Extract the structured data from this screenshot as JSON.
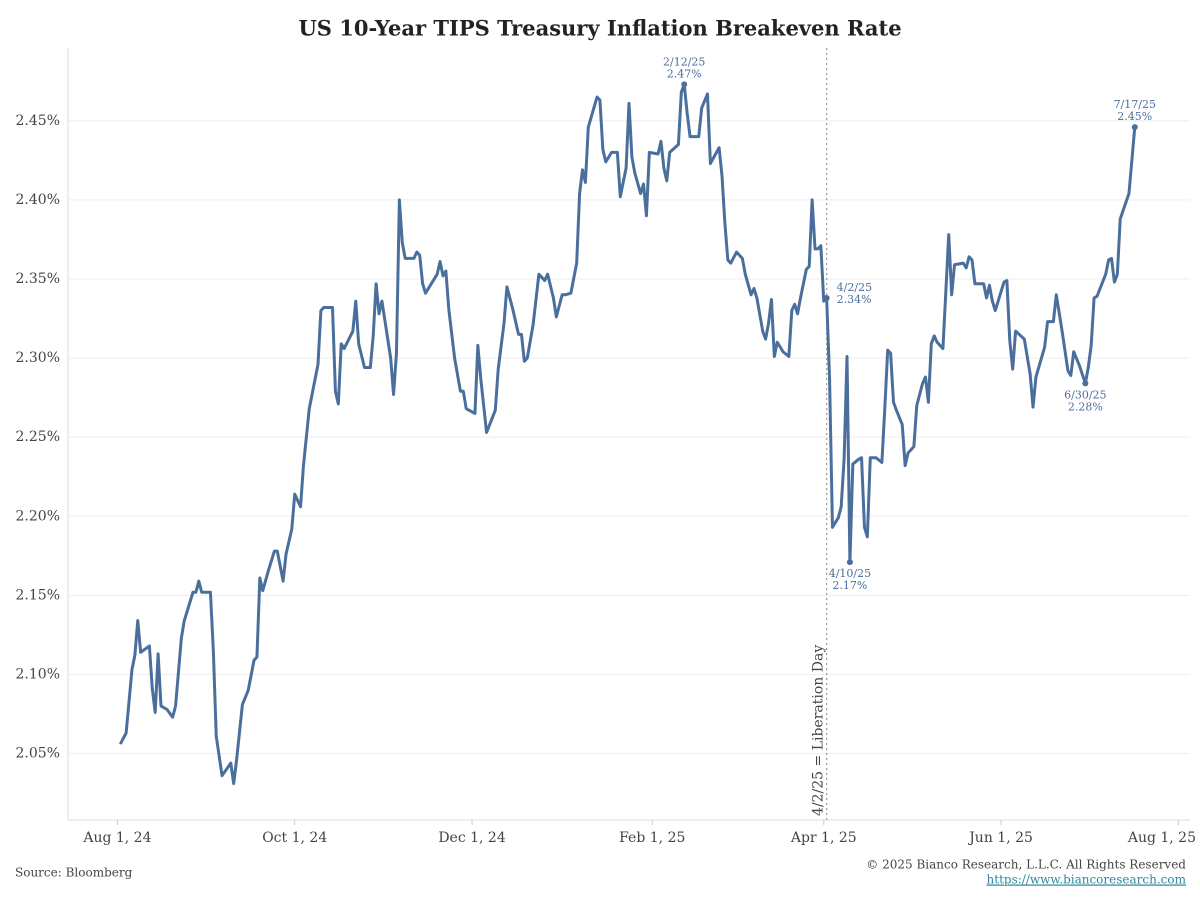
{
  "chart_data": {
    "type": "line",
    "title": "US 10-Year TIPS Treasury Inflation Breakeven Rate",
    "source": "Source: Bloomberg",
    "copyright": "© 2025 Bianco Research, L.L.C. All Rights Reserved",
    "url": "https://www.biancoresearch.com",
    "color": "#4a6f9c",
    "grid": true,
    "xlim": [
      "2024-07-15",
      "2025-08-05"
    ],
    "xticks": [
      {
        "value": "2024-08-01",
        "label": "Aug 1, 24"
      },
      {
        "value": "2024-10-01",
        "label": "Oct 1, 24"
      },
      {
        "value": "2024-12-01",
        "label": "Dec 1, 24"
      },
      {
        "value": "2025-02-01",
        "label": "Feb 1, 25"
      },
      {
        "value": "2025-04-01",
        "label": "Apr 1, 25"
      },
      {
        "value": "2025-06-01",
        "label": "Jun 1, 25"
      },
      {
        "value": "2025-08-01",
        "label": "Aug 1, 25"
      }
    ],
    "ylim": [
      2.008,
      2.496
    ],
    "yticks": [
      {
        "value": 2.05,
        "label": "2.05%"
      },
      {
        "value": 2.1,
        "label": "2.10%"
      },
      {
        "value": 2.15,
        "label": "2.15%"
      },
      {
        "value": 2.2,
        "label": "2.20%"
      },
      {
        "value": 2.25,
        "label": "2.25%"
      },
      {
        "value": 2.3,
        "label": "2.30%"
      },
      {
        "value": 2.35,
        "label": "2.35%"
      },
      {
        "value": 2.4,
        "label": "2.40%"
      },
      {
        "value": 2.45,
        "label": "2.45%"
      }
    ],
    "vline": {
      "x": "2025-04-02",
      "label": "4/2/25 = Liberation Day"
    },
    "annotations": [
      {
        "x": "2025-02-12",
        "label": "2/12/25",
        "value_label": "2.47%"
      },
      {
        "x": "2025-04-02",
        "label": "4/2/25",
        "value_label": "2.34%"
      },
      {
        "x": "2025-04-10",
        "label": "4/10/25",
        "value_label": "2.17%"
      },
      {
        "x": "2025-06-30",
        "label": "6/30/25",
        "value_label": "2.28%"
      },
      {
        "x": "2025-07-17",
        "label": "7/17/25",
        "value_label": "2.45%"
      }
    ],
    "x": [
      "2024-08-02",
      "2024-08-04",
      "2024-08-06",
      "2024-08-07",
      "2024-08-08",
      "2024-08-09",
      "2024-08-12",
      "2024-08-13",
      "2024-08-14",
      "2024-08-15",
      "2024-08-16",
      "2024-08-18",
      "2024-08-20",
      "2024-08-21",
      "2024-08-23",
      "2024-08-24",
      "2024-08-27",
      "2024-08-28",
      "2024-08-29",
      "2024-08-30",
      "2024-09-02",
      "2024-09-03",
      "2024-09-04",
      "2024-09-06",
      "2024-09-09",
      "2024-09-10",
      "2024-09-11",
      "2024-09-13",
      "2024-09-15",
      "2024-09-17",
      "2024-09-18",
      "2024-09-19",
      "2024-09-20",
      "2024-09-22",
      "2024-09-24",
      "2024-09-25",
      "2024-09-27",
      "2024-09-28",
      "2024-09-30",
      "2024-10-01",
      "2024-10-03",
      "2024-10-04",
      "2024-10-06",
      "2024-10-09",
      "2024-10-10",
      "2024-10-11",
      "2024-10-14",
      "2024-10-15",
      "2024-10-16",
      "2024-10-17",
      "2024-10-18",
      "2024-10-21",
      "2024-10-22",
      "2024-10-23",
      "2024-10-25",
      "2024-10-27",
      "2024-10-28",
      "2024-10-29",
      "2024-10-30",
      "2024-10-31",
      "2024-11-03",
      "2024-11-04",
      "2024-11-05",
      "2024-11-06",
      "2024-11-07",
      "2024-11-08",
      "2024-11-11",
      "2024-11-12",
      "2024-11-13",
      "2024-11-14",
      "2024-11-15",
      "2024-11-17",
      "2024-11-19",
      "2024-11-20",
      "2024-11-21",
      "2024-11-22",
      "2024-11-23",
      "2024-11-25",
      "2024-11-27",
      "2024-11-28",
      "2024-11-29",
      "2024-12-02",
      "2024-12-03",
      "2024-12-04",
      "2024-12-06",
      "2024-12-09",
      "2024-12-10",
      "2024-12-12",
      "2024-12-13",
      "2024-12-15",
      "2024-12-17",
      "2024-12-18",
      "2024-12-19",
      "2024-12-20",
      "2024-12-22",
      "2024-12-24",
      "2024-12-26",
      "2024-12-27",
      "2024-12-29",
      "2024-12-30",
      "2025-01-01",
      "2025-01-02",
      "2025-01-04",
      "2025-01-06",
      "2025-01-07",
      "2025-01-08",
      "2025-01-09",
      "2025-01-10",
      "2025-01-13",
      "2025-01-14",
      "2025-01-15",
      "2025-01-16",
      "2025-01-18",
      "2025-01-20",
      "2025-01-21",
      "2025-01-23",
      "2025-01-24",
      "2025-01-25",
      "2025-01-26",
      "2025-01-28",
      "2025-01-29",
      "2025-01-30",
      "2025-01-31",
      "2025-02-03",
      "2025-02-04",
      "2025-02-05",
      "2025-02-06",
      "2025-02-07",
      "2025-02-10",
      "2025-02-11",
      "2025-02-12",
      "2025-02-13",
      "2025-02-14",
      "2025-02-17",
      "2025-02-18",
      "2025-02-20",
      "2025-02-21",
      "2025-02-24",
      "2025-02-25",
      "2025-02-26",
      "2025-02-27",
      "2025-02-28",
      "2025-03-02",
      "2025-03-04",
      "2025-03-05",
      "2025-03-07",
      "2025-03-08",
      "2025-03-09",
      "2025-03-11",
      "2025-03-12",
      "2025-03-13",
      "2025-03-14",
      "2025-03-15",
      "2025-03-16",
      "2025-03-18",
      "2025-03-20",
      "2025-03-21",
      "2025-03-22",
      "2025-03-23",
      "2025-03-24",
      "2025-03-26",
      "2025-03-27",
      "2025-03-28",
      "2025-03-29",
      "2025-03-30",
      "2025-03-31",
      "2025-04-01",
      "2025-04-02",
      "2025-04-03",
      "2025-04-04",
      "2025-04-06",
      "2025-04-07",
      "2025-04-08",
      "2025-04-09",
      "2025-04-10",
      "2025-04-11",
      "2025-04-13",
      "2025-04-14",
      "2025-04-15",
      "2025-04-16",
      "2025-04-17",
      "2025-04-19",
      "2025-04-21",
      "2025-04-22",
      "2025-04-23",
      "2025-04-24",
      "2025-04-25",
      "2025-04-26",
      "2025-04-28",
      "2025-04-29",
      "2025-04-30",
      "2025-05-02",
      "2025-05-03",
      "2025-05-04",
      "2025-05-05",
      "2025-05-06",
      "2025-05-07",
      "2025-05-08",
      "2025-05-09",
      "2025-05-10",
      "2025-05-12",
      "2025-05-13",
      "2025-05-14",
      "2025-05-15",
      "2025-05-16",
      "2025-05-19",
      "2025-05-20",
      "2025-05-21",
      "2025-05-22",
      "2025-05-23",
      "2025-05-26",
      "2025-05-27",
      "2025-05-28",
      "2025-05-29",
      "2025-05-30",
      "2025-05-31",
      "2025-06-02",
      "2025-06-03",
      "2025-06-04",
      "2025-06-05",
      "2025-06-06",
      "2025-06-09",
      "2025-06-10",
      "2025-06-11",
      "2025-06-12",
      "2025-06-13",
      "2025-06-16",
      "2025-06-17",
      "2025-06-19",
      "2025-06-20",
      "2025-06-22",
      "2025-06-24",
      "2025-06-25",
      "2025-06-26",
      "2025-06-28",
      "2025-06-30",
      "2025-07-01",
      "2025-07-02",
      "2025-07-03",
      "2025-07-04",
      "2025-07-07",
      "2025-07-08",
      "2025-07-09",
      "2025-07-10",
      "2025-07-11",
      "2025-07-12",
      "2025-07-15",
      "2025-07-16",
      "2025-07-17"
    ],
    "values": [
      2.056,
      2.063,
      2.103,
      2.112,
      2.134,
      2.114,
      2.118,
      2.091,
      2.076,
      2.113,
      2.08,
      2.078,
      2.073,
      2.08,
      2.123,
      2.134,
      2.152,
      2.152,
      2.159,
      2.152,
      2.152,
      2.115,
      2.061,
      2.036,
      2.044,
      2.031,
      2.046,
      2.081,
      2.09,
      2.109,
      2.111,
      2.161,
      2.153,
      2.166,
      2.178,
      2.178,
      2.159,
      2.176,
      2.192,
      2.214,
      2.206,
      2.232,
      2.268,
      2.296,
      2.33,
      2.332,
      2.332,
      2.279,
      2.271,
      2.309,
      2.306,
      2.317,
      2.336,
      2.309,
      2.294,
      2.294,
      2.314,
      2.347,
      2.328,
      2.336,
      2.3,
      2.277,
      2.303,
      2.4,
      2.373,
      2.363,
      2.363,
      2.367,
      2.365,
      2.347,
      2.341,
      2.347,
      2.353,
      2.361,
      2.352,
      2.355,
      2.331,
      2.3,
      2.279,
      2.279,
      2.268,
      2.265,
      2.308,
      2.287,
      2.253,
      2.267,
      2.293,
      2.322,
      2.345,
      2.331,
      2.315,
      2.315,
      2.298,
      2.3,
      2.321,
      2.353,
      2.349,
      2.353,
      2.338,
      2.326,
      2.34,
      2.34,
      2.341,
      2.36,
      2.404,
      2.419,
      2.411,
      2.446,
      2.465,
      2.463,
      2.432,
      2.424,
      2.43,
      2.43,
      2.402,
      2.42,
      2.461,
      2.427,
      2.417,
      2.404,
      2.41,
      2.39,
      2.43,
      2.429,
      2.437,
      2.42,
      2.412,
      2.43,
      2.435,
      2.468,
      2.473,
      2.455,
      2.44,
      2.44,
      2.458,
      2.467,
      2.423,
      2.433,
      2.415,
      2.385,
      2.362,
      2.36,
      2.367,
      2.363,
      2.353,
      2.34,
      2.344,
      2.338,
      2.317,
      2.312,
      2.322,
      2.337,
      2.301,
      2.31,
      2.304,
      2.301,
      2.33,
      2.334,
      2.328,
      2.338,
      2.356,
      2.358,
      2.4,
      2.369,
      2.369,
      2.371,
      2.336,
      2.338,
      2.287,
      2.193,
      2.199,
      2.206,
      2.236,
      2.301,
      2.171,
      2.233,
      2.236,
      2.237,
      2.193,
      2.187,
      2.237,
      2.237,
      2.234,
      2.268,
      2.305,
      2.303,
      2.272,
      2.267,
      2.258,
      2.232,
      2.24,
      2.244,
      2.27,
      2.277,
      2.284,
      2.288,
      2.272,
      2.309,
      2.314,
      2.31,
      2.306,
      2.342,
      2.378,
      2.34,
      2.359,
      2.36,
      2.357,
      2.364,
      2.362,
      2.347,
      2.347,
      2.338,
      2.346,
      2.336,
      2.33,
      2.336,
      2.348,
      2.349,
      2.311,
      2.293,
      2.317,
      2.312,
      2.301,
      2.29,
      2.269,
      2.288,
      2.307,
      2.323,
      2.323,
      2.34,
      2.317,
      2.292,
      2.289,
      2.304,
      2.295,
      2.284,
      2.294,
      2.308,
      2.338,
      2.339,
      2.353,
      2.362,
      2.363,
      2.348,
      2.353,
      2.388,
      2.404,
      2.425,
      2.446
    ]
  }
}
